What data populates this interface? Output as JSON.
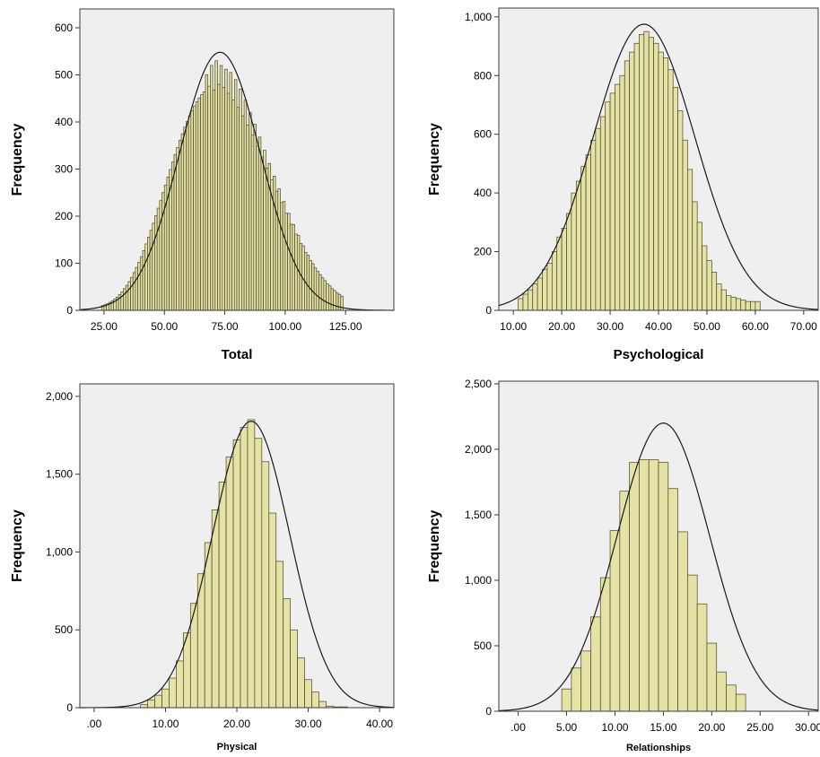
{
  "colors": {
    "plot_bg": "#efefef",
    "bar_fill": "#e5e2a6",
    "bar_stroke": "#494528",
    "curve": "#1a1a1a",
    "frame": "#3a3a3a"
  },
  "chart_data": [
    {
      "type": "bar",
      "xlabel": "Total",
      "ylabel": "Frequency",
      "xlim": [
        15,
        145
      ],
      "ylim": [
        0,
        640
      ],
      "xticks": [
        25,
        50,
        75,
        100,
        125
      ],
      "xtick_labels": [
        "25.00",
        "50.00",
        "75.00",
        "100.00",
        "125.00"
      ],
      "yticks": [
        0,
        100,
        200,
        300,
        400,
        500,
        600
      ],
      "ytick_labels": [
        "0",
        "100",
        "200",
        "300",
        "400",
        "500",
        "600"
      ],
      "bin_start": 24,
      "bin_width": 1,
      "values": [
        10,
        12,
        14,
        17,
        20,
        24,
        28,
        33,
        39,
        46,
        53,
        61,
        70,
        80,
        91,
        102,
        114,
        127,
        141,
        155,
        170,
        185,
        201,
        217,
        233,
        250,
        266,
        283,
        299,
        315,
        331,
        346,
        361,
        375,
        389,
        401,
        413,
        424,
        434,
        443,
        451,
        458,
        464,
        500,
        476,
        520,
        468,
        530,
        480,
        520,
        473,
        512,
        461,
        505,
        447,
        490,
        431,
        470,
        413,
        446,
        393,
        420,
        372,
        395,
        349,
        368,
        326,
        340,
        302,
        312,
        277,
        285,
        253,
        258,
        229,
        231,
        206,
        206,
        183,
        182,
        162,
        159,
        142,
        137,
        123,
        117,
        106,
        99,
        90,
        83,
        76,
        69,
        63,
        56,
        52,
        46,
        42,
        37,
        34,
        30
      ],
      "normal_curve": {
        "mean": 73.0,
        "sd": 16.8,
        "peak": 548
      }
    },
    {
      "type": "bar",
      "xlabel": "Psychological",
      "ylabel": "Frequency",
      "xlim": [
        7,
        73
      ],
      "ylim": [
        0,
        1030
      ],
      "xticks": [
        10,
        20,
        30,
        40,
        50,
        60,
        70
      ],
      "xtick_labels": [
        "10.00",
        "20.00",
        "30.00",
        "40.00",
        "50.00",
        "60.00",
        "70.00"
      ],
      "yticks": [
        0,
        200,
        400,
        600,
        800,
        1000
      ],
      "ytick_labels": [
        "0",
        "200",
        "400",
        "600",
        "800",
        "1,000"
      ],
      "bin_start": 11,
      "bin_width": 1,
      "values": [
        40,
        55,
        70,
        90,
        110,
        140,
        160,
        200,
        250,
        280,
        330,
        400,
        440,
        490,
        530,
        580,
        620,
        660,
        710,
        740,
        770,
        800,
        850,
        880,
        910,
        940,
        950,
        930,
        910,
        880,
        860,
        820,
        760,
        680,
        580,
        480,
        370,
        300,
        220,
        170,
        130,
        90,
        70,
        50,
        45,
        40,
        35,
        30,
        30,
        30
      ],
      "normal_curve": {
        "mean": 37.0,
        "sd": 10.5,
        "peak": 975
      }
    },
    {
      "type": "bar",
      "xlabel": "Physical",
      "ylabel": "Frequency",
      "xlim": [
        -2,
        42
      ],
      "ylim": [
        0,
        2080
      ],
      "xticks": [
        0,
        10,
        20,
        30,
        40
      ],
      "xtick_labels": [
        ".00",
        "10.00",
        "20.00",
        "30.00",
        "40.00"
      ],
      "yticks": [
        0,
        500,
        1000,
        1500,
        2000
      ],
      "ytick_labels": [
        "0",
        "500",
        "1,000",
        "1,500",
        "2,000"
      ],
      "bin_start": 6.5,
      "bin_width": 1,
      "values": [
        20,
        50,
        80,
        120,
        190,
        300,
        480,
        670,
        860,
        1060,
        1270,
        1450,
        1610,
        1720,
        1800,
        1850,
        1730,
        1580,
        1250,
        940,
        700,
        500,
        320,
        180,
        100,
        40,
        10,
        5,
        5
      ],
      "normal_curve": {
        "mean": 22.0,
        "sd": 5.4,
        "peak": 1840
      }
    },
    {
      "type": "bar",
      "xlabel": "Relationships",
      "ylabel": "Frequency",
      "xlim": [
        -2,
        31
      ],
      "ylim": [
        0,
        2520
      ],
      "xticks": [
        0,
        5,
        10,
        15,
        20,
        25,
        30
      ],
      "xtick_labels": [
        ".00",
        "5.00",
        "10.00",
        "15.00",
        "20.00",
        "25.00",
        "30.00"
      ],
      "yticks": [
        0,
        500,
        1000,
        1500,
        2000,
        2500
      ],
      "ytick_labels": [
        "0",
        "500",
        "1,000",
        "1,500",
        "2,000",
        "2,500"
      ],
      "bin_start": 4.5,
      "bin_width": 1,
      "values": [
        170,
        330,
        460,
        720,
        1020,
        1380,
        1680,
        1900,
        1920,
        1920,
        1900,
        1700,
        1370,
        1040,
        820,
        520,
        300,
        200,
        130
      ],
      "normal_curve": {
        "mean": 15.0,
        "sd": 4.8,
        "peak": 2200
      }
    }
  ]
}
